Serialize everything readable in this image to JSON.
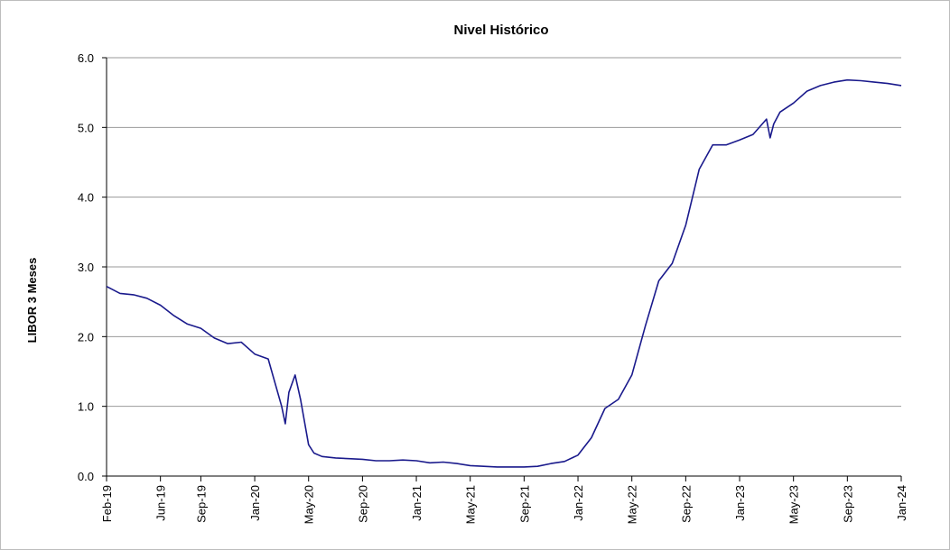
{
  "chart_data": {
    "type": "line",
    "title": "Nivel Histórico",
    "xlabel": "",
    "ylabel": "LIBOR 3 Meses",
    "ylim": [
      0,
      6
    ],
    "yticks": [
      "0.0",
      "1.0",
      "2.0",
      "3.0",
      "4.0",
      "5.0",
      "6.0"
    ],
    "xticks": [
      "Feb-19",
      "Jun-19",
      "Sep-19",
      "Jan-20",
      "May-20",
      "Sep-20",
      "Jan-21",
      "May-21",
      "Sep-21",
      "Jan-22",
      "May-22",
      "Sep-22",
      "Jan-23",
      "May-23",
      "Sep-23",
      "Jan-24"
    ],
    "grid": "horizontal",
    "line_color": "#1a1a8c",
    "series": [
      {
        "x": [
          "Feb-19",
          "Mar-19",
          "Apr-19",
          "May-19",
          "Jun-19",
          "Jul-19",
          "Aug-19",
          "Sep-19",
          "Oct-19",
          "Nov-19",
          "Dec-19",
          "Jan-20",
          "Feb-20",
          "Mar-20",
          "Mar-20",
          "Mar-20",
          "Apr-20",
          "Apr-20",
          "May-20",
          "May-20",
          "Jun-20",
          "Jul-20",
          "Aug-20",
          "Sep-20",
          "Oct-20",
          "Nov-20",
          "Dec-20",
          "Jan-21",
          "Feb-21",
          "Mar-21",
          "Apr-21",
          "May-21",
          "Jun-21",
          "Jul-21",
          "Aug-21",
          "Sep-21",
          "Oct-21",
          "Nov-21",
          "Dec-21",
          "Jan-22",
          "Feb-22",
          "Mar-22",
          "Apr-22",
          "May-22",
          "Jun-22",
          "Jul-22",
          "Aug-22",
          "Sep-22",
          "Oct-22",
          "Nov-22",
          "Dec-22",
          "Jan-23",
          "Feb-23",
          "Mar-23",
          "Mar-23",
          "Mar-23",
          "Apr-23",
          "May-23",
          "Jun-23",
          "Jul-23",
          "Aug-23",
          "Sep-23",
          "Oct-23",
          "Nov-23",
          "Dec-23",
          "Jan-24"
        ],
        "values": [
          2.72,
          2.62,
          2.6,
          2.55,
          2.45,
          2.3,
          2.18,
          2.12,
          1.98,
          1.9,
          1.92,
          1.75,
          1.68,
          1.0,
          0.75,
          1.2,
          1.45,
          1.1,
          0.45,
          0.33,
          0.28,
          0.26,
          0.25,
          0.24,
          0.22,
          0.22,
          0.23,
          0.22,
          0.19,
          0.2,
          0.18,
          0.15,
          0.14,
          0.13,
          0.13,
          0.13,
          0.14,
          0.18,
          0.21,
          0.3,
          0.55,
          0.97,
          1.1,
          1.45,
          2.15,
          2.8,
          3.05,
          3.6,
          4.4,
          4.75,
          4.75,
          4.82,
          4.9,
          5.12,
          4.85,
          5.05,
          5.22,
          5.35,
          5.52,
          5.6,
          5.65,
          5.68,
          5.67,
          5.65,
          5.63,
          5.6
        ]
      }
    ]
  }
}
